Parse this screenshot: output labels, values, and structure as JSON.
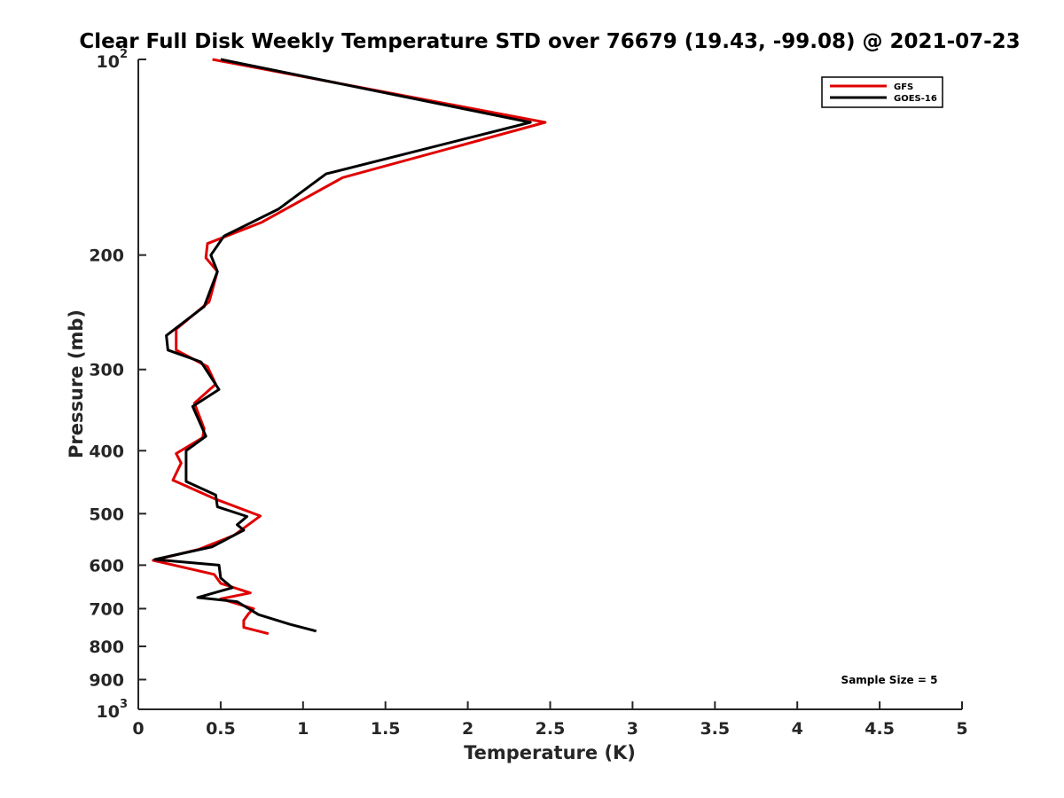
{
  "chart_data": {
    "type": "line",
    "title": "Clear Full Disk Weekly Temperature STD over 76679 (19.43, -99.08) @ 2021-07-23",
    "xlabel": "Temperature (K)",
    "ylabel": "Pressure (mb)",
    "xlim": [
      0,
      5
    ],
    "ylim": [
      100,
      1000
    ],
    "y_scale": "log",
    "y_reversed": true,
    "x_ticks": [
      "0",
      "0.5",
      "1",
      "1.5",
      "2",
      "2.5",
      "3",
      "3.5",
      "4",
      "4.5",
      "5"
    ],
    "x_tick_values": [
      0,
      0.5,
      1,
      1.5,
      2,
      2.5,
      3,
      3.5,
      4,
      4.5,
      5
    ],
    "y_ticks": [
      {
        "value": 100,
        "base": "10",
        "exp": "2"
      },
      {
        "value": 200,
        "label": "200"
      },
      {
        "value": 300,
        "label": "300"
      },
      {
        "value": 400,
        "label": "400"
      },
      {
        "value": 500,
        "label": "500"
      },
      {
        "value": 600,
        "label": "600"
      },
      {
        "value": 700,
        "label": "700"
      },
      {
        "value": 800,
        "label": "800"
      },
      {
        "value": 900,
        "label": "900"
      },
      {
        "value": 1000,
        "base": "10",
        "exp": "3"
      }
    ],
    "grid": false,
    "legend_position": "top-right",
    "annotation": "Sample Size = 5",
    "series": [
      {
        "name": "GFS",
        "color": "#e00000",
        "points": [
          [
            0.45,
            100
          ],
          [
            2.47,
            125
          ],
          [
            1.24,
            152
          ],
          [
            0.75,
            178
          ],
          [
            0.42,
            192
          ],
          [
            0.41,
            202
          ],
          [
            0.48,
            212
          ],
          [
            0.43,
            236
          ],
          [
            0.23,
            260
          ],
          [
            0.23,
            280
          ],
          [
            0.42,
            297
          ],
          [
            0.47,
            316
          ],
          [
            0.34,
            338
          ],
          [
            0.4,
            370
          ],
          [
            0.39,
            382
          ],
          [
            0.23,
            404
          ],
          [
            0.26,
            418
          ],
          [
            0.21,
            444
          ],
          [
            0.47,
            475
          ],
          [
            0.74,
            504
          ],
          [
            0.58,
            540
          ],
          [
            0.37,
            567
          ],
          [
            0.09,
            590
          ],
          [
            0.46,
            620
          ],
          [
            0.5,
            640
          ],
          [
            0.68,
            662
          ],
          [
            0.5,
            676
          ],
          [
            0.7,
            700
          ],
          [
            0.67,
            712
          ],
          [
            0.64,
            730
          ],
          [
            0.64,
            748
          ],
          [
            0.79,
            765
          ]
        ]
      },
      {
        "name": "GOES-16",
        "color": "#000000",
        "points": [
          [
            0.5,
            100
          ],
          [
            2.38,
            125
          ],
          [
            1.14,
            150
          ],
          [
            0.85,
            170
          ],
          [
            0.52,
            187
          ],
          [
            0.44,
            200
          ],
          [
            0.48,
            212
          ],
          [
            0.4,
            240
          ],
          [
            0.17,
            266
          ],
          [
            0.18,
            280
          ],
          [
            0.38,
            292
          ],
          [
            0.49,
            322
          ],
          [
            0.33,
            342
          ],
          [
            0.41,
            380
          ],
          [
            0.29,
            400
          ],
          [
            0.29,
            446
          ],
          [
            0.47,
            468
          ],
          [
            0.48,
            488
          ],
          [
            0.66,
            505
          ],
          [
            0.6,
            520
          ],
          [
            0.64,
            530
          ],
          [
            0.45,
            562
          ],
          [
            0.1,
            588
          ],
          [
            0.49,
            600
          ],
          [
            0.5,
            628
          ],
          [
            0.57,
            650
          ],
          [
            0.36,
            673
          ],
          [
            0.6,
            683
          ],
          [
            0.73,
            715
          ],
          [
            0.92,
            740
          ],
          [
            1.08,
            758
          ]
        ]
      }
    ]
  }
}
